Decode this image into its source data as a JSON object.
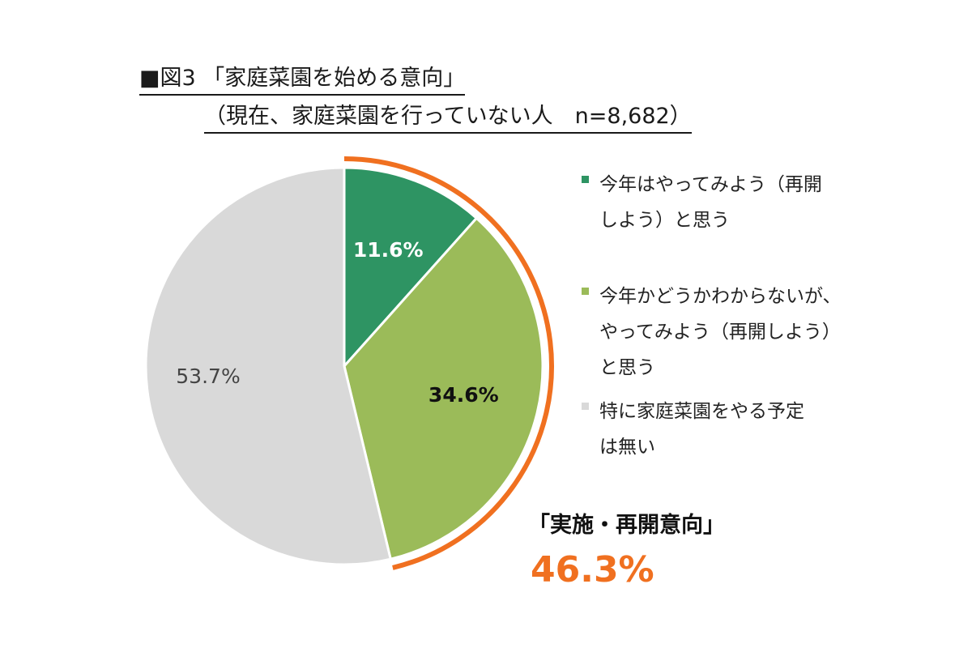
{
  "chart_data": {
    "type": "pie",
    "title": "■図3 「家庭菜園を始める意向」",
    "subtitle": "（現在、家庭菜園を行っていない人　n=8,682）",
    "slices": [
      {
        "label": "今年はやってみよう（再開しよう）と思う",
        "legend_text": "今年はやってみよう（再開\nしよう）と思う",
        "value": 11.6,
        "value_label": "11.6%",
        "color": "#2e9463"
      },
      {
        "label": "今年かどうかわからないが、やってみよう（再開しよう）と思う",
        "legend_text": "今年かどうかわからないが、\nやってみよう（再開しよう）\nと思う",
        "value": 34.6,
        "value_label": "34.6%",
        "color": "#9bbb59"
      },
      {
        "label": "特に家庭菜園をやる予定は無い",
        "legend_text": "特に家庭菜園をやる予定\nは無い",
        "value": 53.7,
        "value_label": "53.7%",
        "color": "#d9d9d9"
      }
    ],
    "highlight": {
      "label": "「実施・再開意向」",
      "value": 46.3,
      "value_label": "46.3%",
      "color": "#f07020"
    }
  }
}
